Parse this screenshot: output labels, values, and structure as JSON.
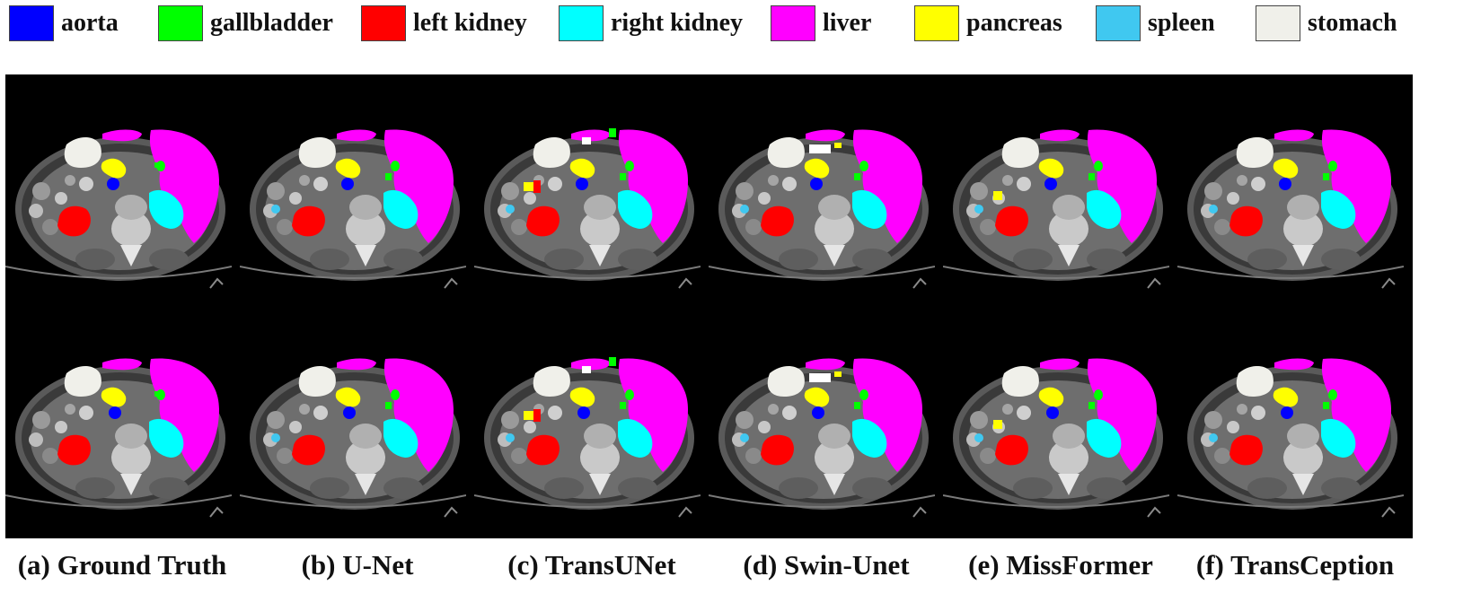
{
  "legend": {
    "items": [
      {
        "label": "aorta",
        "color": "#0000ff"
      },
      {
        "label": "gallbladder",
        "color": "#00ff00"
      },
      {
        "label": "left kidney",
        "color": "#ff0000"
      },
      {
        "label": "right kidney",
        "color": "#00ffff"
      },
      {
        "label": "liver",
        "color": "#ff00ff"
      },
      {
        "label": "pancreas",
        "color": "#ffff00"
      },
      {
        "label": "spleen",
        "color": "#40c8f0"
      },
      {
        "label": "stomach",
        "color": "#f0f0ea"
      }
    ]
  },
  "captions": [
    "(a) Ground Truth",
    "(b) U-Net",
    "(c) TransUNet",
    "(d) Swin-Unet",
    "(e) MissFormer",
    "(f) TransCeption"
  ],
  "grid": {
    "rows": 2,
    "columns": 6
  }
}
